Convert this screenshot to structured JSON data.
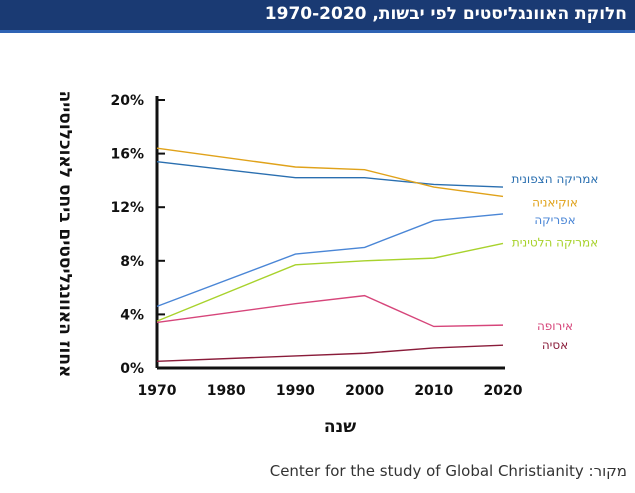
{
  "header": {
    "title": "חלוקת האוונגליסטים לפי יבשות, 1970-2020"
  },
  "source": {
    "text": "מקור: Center for the study of Global Christianity"
  },
  "chart_data": {
    "type": "line",
    "title": "חלוקת האוונגליסטים לפי יבשות, 1970-2020",
    "xlabel": "שנה",
    "ylabel": "אחוז האוונגליסטים ביחס לאוכלוסייה",
    "x": [
      1970,
      1990,
      2000,
      2010,
      2020
    ],
    "x_ticks": [
      "1970",
      "1980",
      "1990",
      "2000",
      "2010",
      "2020"
    ],
    "y_ticks": [
      "0%",
      "4%",
      "8%",
      "12%",
      "16%",
      "20%"
    ],
    "xlim": [
      1970,
      2020
    ],
    "ylim": [
      0,
      20
    ],
    "grid": false,
    "legend": "right, labels at line ends",
    "series": [
      {
        "name": "אמריקה הצפונית",
        "color": "#2a6fb0",
        "values": [
          15.4,
          14.2,
          14.2,
          13.7,
          13.5
        ]
      },
      {
        "name": "אוקיאניה",
        "color": "#e0a21a",
        "values": [
          16.4,
          15.0,
          14.8,
          13.5,
          12.8
        ]
      },
      {
        "name": "אפריקה",
        "color": "#4a86d6",
        "values": [
          4.6,
          8.5,
          9.0,
          11.0,
          11.5
        ]
      },
      {
        "name": "אמריקה הלטינית",
        "color": "#a8d22c",
        "values": [
          3.5,
          7.7,
          8.0,
          8.2,
          9.3
        ]
      },
      {
        "name": "אירופה",
        "color": "#d6457a",
        "values": [
          3.4,
          4.8,
          5.4,
          3.1,
          3.2
        ]
      },
      {
        "name": "אסיה",
        "color": "#8a1c3a",
        "values": [
          0.5,
          0.9,
          1.1,
          1.5,
          1.7
        ]
      }
    ]
  }
}
